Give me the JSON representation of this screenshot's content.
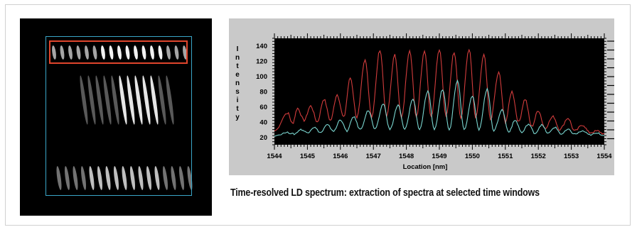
{
  "caption": "Time-resolved LD spectrum: extraction of spectra at selected time windows",
  "colors": {
    "plot_background": "#000000",
    "panel_background": "#c9c9c9",
    "series_red": "#d23c3c",
    "series_cyan": "#7ad6d0",
    "selection_box": "#e0452c",
    "streak_outline": "#3aa6c8"
  },
  "streak_image": {
    "type": "streak-camera-image",
    "selected_window": "top"
  },
  "chart_data": {
    "type": "line",
    "xlabel": "Location [nm]",
    "ylabel": "Intensity",
    "xlim": [
      1544,
      1554
    ],
    "ylim": [
      10,
      150
    ],
    "xticks": [
      "1544",
      "1545",
      "1546",
      "1547",
      "1548",
      "1549",
      "1550",
      "1551",
      "1552",
      "1553",
      "1554"
    ],
    "yticks": [
      "20",
      "40",
      "60",
      "80",
      "100",
      "120",
      "140"
    ],
    "legend": "none",
    "series": [
      {
        "color": "#d23c3c",
        "peaks": [
          [
            1544.4,
            52
          ],
          [
            1544.7,
            58
          ],
          [
            1545.1,
            61
          ],
          [
            1545.5,
            70
          ],
          [
            1545.9,
            76
          ],
          [
            1546.3,
            98
          ],
          [
            1546.75,
            121
          ],
          [
            1547.2,
            135
          ],
          [
            1547.65,
            128
          ],
          [
            1548.1,
            135
          ],
          [
            1548.55,
            134
          ],
          [
            1549.0,
            136
          ],
          [
            1549.45,
            132
          ],
          [
            1549.9,
            136
          ],
          [
            1550.35,
            128
          ],
          [
            1550.8,
            105
          ],
          [
            1551.2,
            80
          ],
          [
            1551.6,
            70
          ],
          [
            1552.0,
            55
          ],
          [
            1552.45,
            47
          ],
          [
            1552.9,
            45
          ],
          [
            1553.35,
            36
          ],
          [
            1553.8,
            28
          ]
        ],
        "valleys": [
          [
            1544.0,
            28
          ],
          [
            1544.55,
            38
          ],
          [
            1544.9,
            42
          ],
          [
            1545.3,
            40
          ],
          [
            1545.7,
            42
          ],
          [
            1546.1,
            46
          ],
          [
            1546.5,
            46
          ],
          [
            1546.95,
            47
          ],
          [
            1547.4,
            47
          ],
          [
            1547.85,
            45
          ],
          [
            1548.3,
            47
          ],
          [
            1548.75,
            47
          ],
          [
            1549.2,
            47
          ],
          [
            1549.65,
            45
          ],
          [
            1550.1,
            45
          ],
          [
            1550.55,
            43
          ],
          [
            1551.0,
            40
          ],
          [
            1551.4,
            40
          ],
          [
            1551.8,
            34
          ],
          [
            1552.2,
            32
          ],
          [
            1552.65,
            30
          ],
          [
            1553.1,
            28
          ],
          [
            1553.55,
            26
          ],
          [
            1554.0,
            24
          ]
        ]
      },
      {
        "color": "#7ad6d0",
        "peaks": [
          [
            1544.4,
            26
          ],
          [
            1544.8,
            30
          ],
          [
            1545.2,
            33
          ],
          [
            1545.6,
            36
          ],
          [
            1546.0,
            43
          ],
          [
            1546.4,
            47
          ],
          [
            1546.85,
            55
          ],
          [
            1547.3,
            64
          ],
          [
            1547.75,
            62
          ],
          [
            1548.2,
            70
          ],
          [
            1548.65,
            80
          ],
          [
            1549.1,
            83
          ],
          [
            1549.55,
            95
          ],
          [
            1550.0,
            74
          ],
          [
            1550.45,
            83
          ],
          [
            1550.9,
            56
          ],
          [
            1551.3,
            42
          ],
          [
            1551.7,
            37
          ],
          [
            1552.1,
            36
          ],
          [
            1552.5,
            33
          ],
          [
            1552.9,
            30
          ],
          [
            1553.35,
            28
          ],
          [
            1553.8,
            25
          ]
        ],
        "valleys": [
          [
            1544.0,
            22
          ],
          [
            1544.6,
            24
          ],
          [
            1545.0,
            26
          ],
          [
            1545.4,
            26
          ],
          [
            1545.8,
            28
          ],
          [
            1546.2,
            28
          ],
          [
            1546.6,
            30
          ],
          [
            1547.05,
            30
          ],
          [
            1547.5,
            30
          ],
          [
            1547.95,
            30
          ],
          [
            1548.4,
            30
          ],
          [
            1548.85,
            30
          ],
          [
            1549.3,
            30
          ],
          [
            1549.75,
            30
          ],
          [
            1550.2,
            30
          ],
          [
            1550.65,
            28
          ],
          [
            1551.1,
            27
          ],
          [
            1551.5,
            26
          ],
          [
            1551.9,
            25
          ],
          [
            1552.3,
            25
          ],
          [
            1552.7,
            24
          ],
          [
            1553.1,
            24
          ],
          [
            1553.55,
            23
          ],
          [
            1554.0,
            22
          ]
        ]
      }
    ]
  }
}
